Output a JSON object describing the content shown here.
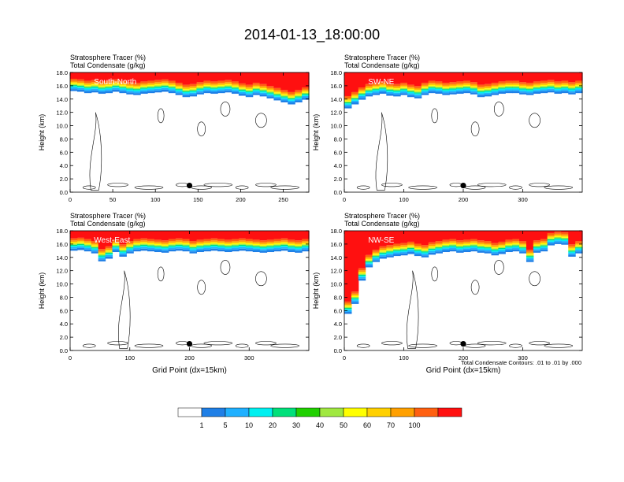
{
  "figure": {
    "title": "2014-01-13_18:00:00",
    "footnote": "Total Condensate Contours: .01 to .01 by .000"
  },
  "colorbar": {
    "colors": [
      "#ffffff",
      "#1f7fe6",
      "#1fb0ff",
      "#00f0f0",
      "#00e07a",
      "#20d000",
      "#a0e840",
      "#ffff00",
      "#ffd000",
      "#ffa000",
      "#ff6010",
      "#ff1010"
    ],
    "labels": [
      "1",
      "5",
      "10",
      "20",
      "30",
      "40",
      "50",
      "60",
      "70",
      "100"
    ]
  },
  "chart_data": [
    {
      "type": "heatmap",
      "label": "South-North",
      "header": [
        "Stratosphere Tracer   (%)",
        "Total Condensate   (g/kg)"
      ],
      "ylabel": "Height (km)",
      "xlabel": "",
      "xlim": [
        0,
        280
      ],
      "ylim": [
        0,
        18
      ],
      "xticks": [
        "0",
        "50",
        "100",
        "150",
        "200",
        "250"
      ],
      "yticks": [
        "0.0",
        "2.0",
        "4.0",
        "6.0",
        "8.0",
        "10.0",
        "12.0",
        "14.0",
        "16.0",
        "18.0"
      ],
      "point_marker": {
        "x": 140,
        "y": 1.0
      },
      "tracer_base_km": [
        15.2,
        15.1,
        14.9,
        15.0,
        14.8,
        14.9,
        15.1,
        14.9,
        14.7,
        14.6,
        14.8,
        14.9,
        15.0,
        15.1,
        14.9,
        14.6,
        14.3,
        14.4,
        14.7,
        14.9,
        14.8,
        14.9,
        15.0,
        14.8,
        14.5,
        14.3,
        14.6,
        14.4,
        14.1,
        13.8,
        13.5,
        13.2,
        13.5,
        13.9
      ],
      "contour_level_gkg": 0.01
    },
    {
      "type": "heatmap",
      "label": "SW-NE",
      "header": [
        "Stratosphere Tracer   (%)",
        "Total Condensate   (g/kg)"
      ],
      "ylabel": "Height (km)",
      "xlabel": "",
      "xlim": [
        0,
        400
      ],
      "ylim": [
        0,
        18
      ],
      "xticks": [
        "0",
        "100",
        "200",
        "300"
      ],
      "yticks": [
        "0.0",
        "2.0",
        "4.0",
        "6.0",
        "8.0",
        "10.0",
        "12.0",
        "14.0",
        "16.0",
        "18.0"
      ],
      "point_marker": {
        "x": 200,
        "y": 1.0
      },
      "tracer_base_km": [
        12.6,
        13.2,
        13.9,
        14.4,
        14.6,
        14.8,
        14.5,
        14.4,
        14.6,
        14.3,
        14.1,
        14.6,
        14.9,
        14.8,
        14.6,
        14.7,
        14.8,
        14.9,
        14.7,
        14.3,
        14.4,
        14.6,
        14.8,
        14.9,
        14.9,
        14.7,
        14.6,
        14.8,
        14.9,
        15.0,
        14.8,
        14.9,
        14.7,
        14.9
      ],
      "contour_level_gkg": 0.01
    },
    {
      "type": "heatmap",
      "label": "West-East",
      "header": [
        "Stratosphere Tracer   (%)",
        "Total Condensate   (g/kg)"
      ],
      "ylabel": "Height (km)",
      "xlabel": "Grid Point (dx=15km)",
      "xlim": [
        0,
        400
      ],
      "ylim": [
        0,
        18
      ],
      "xticks": [
        "0",
        "100",
        "200",
        "300"
      ],
      "yticks": [
        "0.0",
        "2.0",
        "4.0",
        "6.0",
        "8.0",
        "10.0",
        "12.0",
        "14.0",
        "16.0",
        "18.0"
      ],
      "point_marker": {
        "x": 200,
        "y": 1.0
      },
      "tracer_base_km": [
        15.0,
        15.1,
        14.9,
        14.6,
        13.4,
        13.8,
        14.8,
        14.1,
        14.6,
        14.9,
        15.0,
        14.9,
        14.8,
        14.7,
        14.9,
        15.0,
        14.9,
        14.6,
        14.8,
        14.9,
        15.0,
        14.9,
        14.8,
        14.9,
        15.0,
        14.9,
        14.8,
        14.7,
        14.8,
        14.9,
        15.0,
        14.8,
        14.7,
        14.9
      ],
      "contour_level_gkg": 0.01
    },
    {
      "type": "heatmap",
      "label": "NW-SE",
      "header": [
        "Stratosphere Tracer   (%)",
        "Total Condensate   (g/kg)"
      ],
      "ylabel": "Height (km)",
      "xlabel": "Grid Point (dx=15km)",
      "xlim": [
        0,
        400
      ],
      "ylim": [
        0,
        18
      ],
      "xticks": [
        "0",
        "100",
        "200",
        "300"
      ],
      "yticks": [
        "0.0",
        "2.0",
        "4.0",
        "6.0",
        "8.0",
        "10.0",
        "12.0",
        "14.0",
        "16.0",
        "18.0"
      ],
      "point_marker": {
        "x": 200,
        "y": 1.0
      },
      "tracer_base_km": [
        5.5,
        7.0,
        10.5,
        12.5,
        13.3,
        13.8,
        14.0,
        14.2,
        14.3,
        14.5,
        14.2,
        14.0,
        14.4,
        14.6,
        14.8,
        14.9,
        14.7,
        14.8,
        14.9,
        14.7,
        14.6,
        14.3,
        14.5,
        14.8,
        14.9,
        14.6,
        13.3,
        14.7,
        14.9,
        15.8,
        16.0,
        15.9,
        14.1,
        14.6
      ],
      "contour_level_gkg": 0.01
    }
  ]
}
